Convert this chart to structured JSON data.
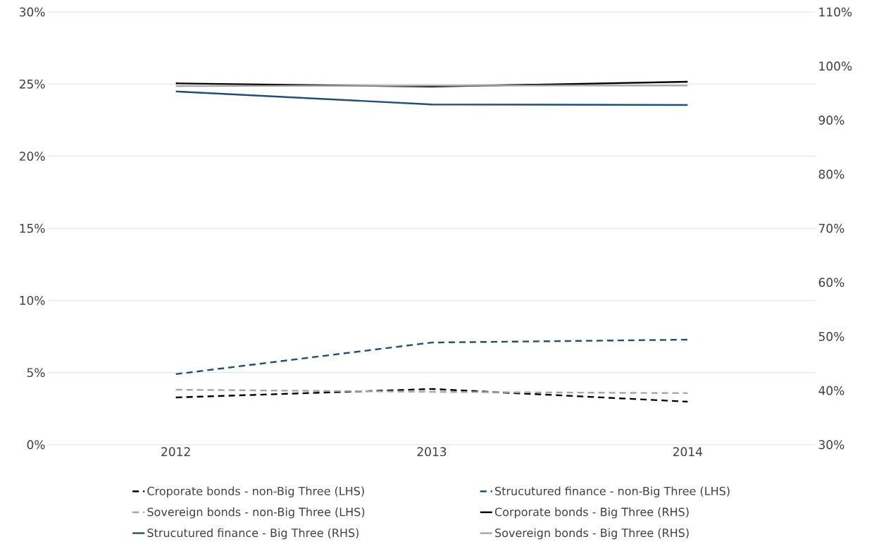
{
  "chart_data": {
    "type": "line",
    "categories": [
      "2012",
      "2013",
      "2014"
    ],
    "series": [
      {
        "name": "Croporate bonds - non-Big Three (LHS)",
        "color": "#000000",
        "line_style": "dashed",
        "axis": "y",
        "values": [
          3.27,
          3.86,
          2.98
        ]
      },
      {
        "name": "Strucutured finance - non-Big Three (LHS)",
        "color": "#1f4e79",
        "line_style": "dashed",
        "axis": "y",
        "values": [
          4.89,
          7.08,
          7.28
        ]
      },
      {
        "name": "Sovereign bonds - non-Big Three (LHS)",
        "color": "#a5a5a5",
        "line_style": "dashed",
        "axis": "y",
        "values": [
          3.81,
          3.66,
          3.57
        ]
      },
      {
        "name": "Corporate bonds - Big Three (RHS)",
        "color": "#000000",
        "line_style": "solid",
        "axis": "y2",
        "values": [
          96.8,
          96.2,
          97.1
        ]
      },
      {
        "name": "Strucutured finance - Big Three (RHS)",
        "color": "#1f4e79",
        "line_style": "solid",
        "axis": "y2",
        "values": [
          95.3,
          92.9,
          92.8
        ]
      },
      {
        "name": "Sovereign bonds - Big Three (RHS)",
        "color": "#a5a5a5",
        "line_style": "solid",
        "axis": "y2",
        "values": [
          96.3,
          96.4,
          96.4
        ]
      }
    ],
    "ylim": [
      0,
      30
    ],
    "yticks": [
      {
        "value": 0,
        "label": "0%"
      },
      {
        "value": 5,
        "label": "5%"
      },
      {
        "value": 10,
        "label": "10%"
      },
      {
        "value": 15,
        "label": "15%"
      },
      {
        "value": 20,
        "label": "20%"
      },
      {
        "value": 25,
        "label": "25%"
      },
      {
        "value": 30,
        "label": "30%"
      }
    ],
    "y2lim": [
      30,
      110
    ],
    "y2ticks": [
      {
        "value": 30,
        "label": "30%"
      },
      {
        "value": 40,
        "label": "40%"
      },
      {
        "value": 50,
        "label": "50%"
      },
      {
        "value": 60,
        "label": "60%"
      },
      {
        "value": 70,
        "label": "70%"
      },
      {
        "value": 80,
        "label": "80%"
      },
      {
        "value": 90,
        "label": "90%"
      },
      {
        "value": 100,
        "label": "100%"
      },
      {
        "value": 110,
        "label": "110%"
      }
    ],
    "grid": "y",
    "legend": "bottom"
  }
}
